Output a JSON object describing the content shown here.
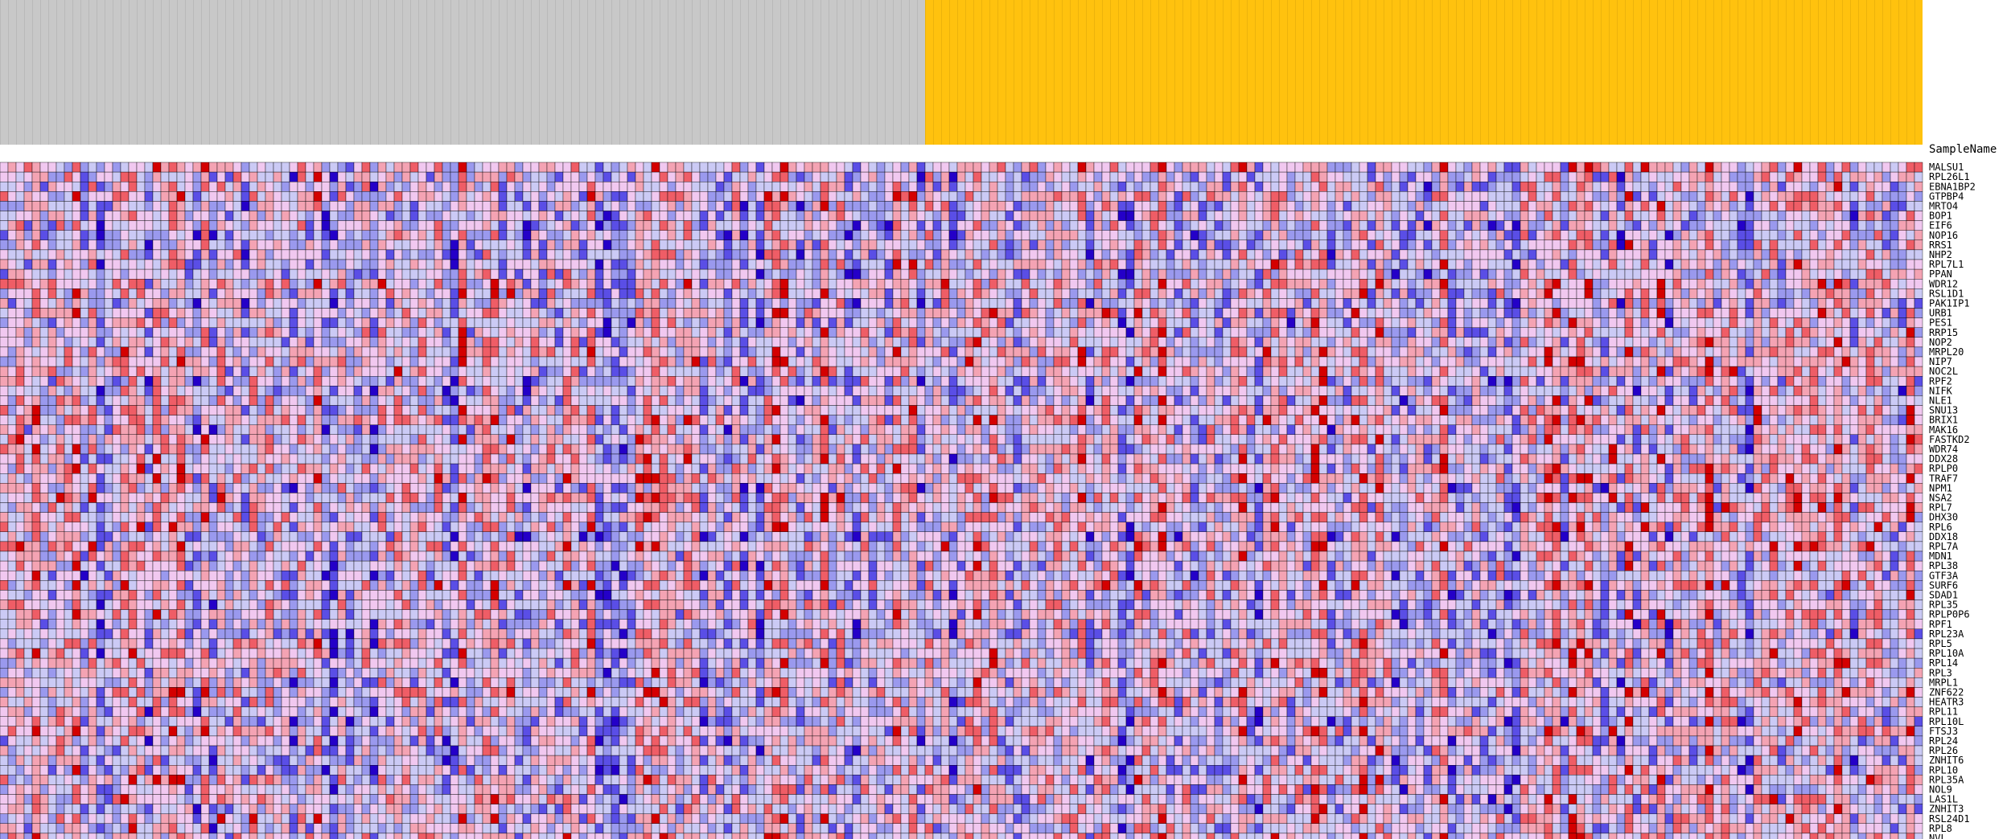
{
  "chart_data": {
    "type": "heatmap",
    "column_axis_title": "SampleName",
    "column_groups": [
      {
        "color": "#c8c8c8",
        "count": 115
      },
      {
        "color": "#ffc20e",
        "count": 124
      }
    ],
    "columns": [],
    "rows": [
      "MALSU1",
      "RPL26L1",
      "EBNA1BP2",
      "GTPBP4",
      "MRTO4",
      "BOP1",
      "EIF6",
      "NOP16",
      "RRS1",
      "NHP2",
      "RPL7L1",
      "PPAN",
      "WDR12",
      "RSL1D1",
      "PAK1IP1",
      "URB1",
      "PES1",
      "RRP15",
      "NOP2",
      "MRPL20",
      "NIP7",
      "NOC2L",
      "RPF2",
      "NIFK",
      "NLE1",
      "SNU13",
      "BRIX1",
      "MAK16",
      "FASTKD2",
      "WDR74",
      "DDX28",
      "RPLP0",
      "TRAF7",
      "NPM1",
      "NSA2",
      "RPL7",
      "DHX30",
      "RPL6",
      "DDX18",
      "RPL7A",
      "MDN1",
      "RPL38",
      "GTF3A",
      "SURF6",
      "SDAD1",
      "RPL35",
      "RPLP0P6",
      "RPF1",
      "RPL23A",
      "RPL5",
      "RPL10A",
      "RPL14",
      "RPL3",
      "MRPL1",
      "ZNF622",
      "HEATR3",
      "RPL11",
      "RPL10L",
      "FTSJ3",
      "RPL24",
      "RPL26",
      "ZNHIT6",
      "RPL10",
      "RPL35A",
      "NOL9",
      "LAS1L",
      "ZNHIT3",
      "RSL24D1",
      "RPL8",
      "NVL"
    ],
    "color_scale": [
      "#2400c8",
      "#5a4ee6",
      "#9a99ee",
      "#cbcaf5",
      "#f1c8f0",
      "#f4a3b3",
      "#ef5d66",
      "#d40000"
    ],
    "value_range": [
      -3,
      3
    ],
    "values": []
  }
}
